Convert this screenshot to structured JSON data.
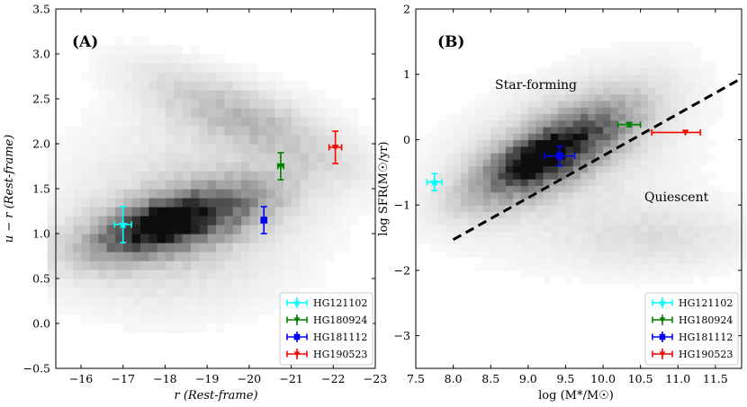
{
  "chart_data": [
    {
      "type": "scatter",
      "panel_label": "(A)",
      "xlabel": "r (Rest-frame)",
      "ylabel": "u − r (Rest-frame)",
      "xlim": [
        -15.4,
        -23.0
      ],
      "ylim": [
        -0.5,
        3.5
      ],
      "x_ticks": [
        -16,
        -17,
        -18,
        -19,
        -20,
        -21,
        -22,
        -23
      ],
      "x_tick_labels": [
        "−16",
        "−17",
        "−18",
        "−19",
        "−20",
        "−21",
        "−22",
        "−23"
      ],
      "y_ticks": [
        -0.5,
        0.0,
        0.5,
        1.0,
        1.5,
        2.0,
        2.5,
        3.0,
        3.5
      ],
      "y_tick_labels": [
        "−0.5",
        "0.0",
        "0.5",
        "1.0",
        "1.5",
        "2.0",
        "2.5",
        "3.0",
        "3.5"
      ],
      "background": "2D density histogram of comparison galaxies (grey)",
      "points": [
        {
          "name": "HG121102",
          "x": -17.0,
          "y": 1.1,
          "xerr": 0.2,
          "yerr": 0.2,
          "color": "#00ffff",
          "marker": "star"
        },
        {
          "name": "HG180924",
          "x": -20.75,
          "y": 1.75,
          "xerr": 0.07,
          "yerr": 0.15,
          "color": "#008000",
          "marker": "tri-down"
        },
        {
          "name": "HG181112",
          "x": -20.35,
          "y": 1.15,
          "xerr": 0.03,
          "yerr": 0.15,
          "color": "#0000ff",
          "marker": "square"
        },
        {
          "name": "HG190523",
          "x": -22.05,
          "y": 1.96,
          "xerr": 0.15,
          "yerr": 0.18,
          "color": "#ff0000",
          "marker": "tri-down"
        }
      ],
      "legend": [
        "HG121102",
        "HG180924",
        "HG181112",
        "HG190523"
      ],
      "legend_position": "bottom-right"
    },
    {
      "type": "scatter",
      "panel_label": "(B)",
      "xlabel": "log (M*/M☉)",
      "ylabel": "log SFR(M☉/yr)",
      "xlim": [
        7.5,
        11.85
      ],
      "ylim": [
        -3.5,
        2.0
      ],
      "x_ticks": [
        7.5,
        8.0,
        8.5,
        9.0,
        9.5,
        10.0,
        10.5,
        11.0,
        11.5
      ],
      "x_tick_labels": [
        "7.5",
        "8.0",
        "8.5",
        "9.0",
        "9.5",
        "10.0",
        "10.5",
        "11.0",
        "11.5"
      ],
      "y_ticks": [
        -3,
        -2,
        -1,
        0,
        1,
        2
      ],
      "y_tick_labels": [
        "−3",
        "−2",
        "−1",
        "0",
        "1",
        "2"
      ],
      "background": "2D density histogram of comparison galaxies (grey)",
      "annotations": [
        "Star-forming",
        "Quiescent"
      ],
      "divider_line": {
        "style": "dashed",
        "color": "#000000",
        "x": [
          8.0,
          11.85
        ],
        "y": [
          -1.53,
          0.94
        ]
      },
      "points": [
        {
          "name": "HG121102",
          "x": 7.75,
          "y": -0.65,
          "xerr": 0.1,
          "yerr": 0.13,
          "color": "#00ffff",
          "marker": "star"
        },
        {
          "name": "HG180924",
          "x": 10.35,
          "y": 0.23,
          "xerr": 0.15,
          "yerr": 0.03,
          "color": "#008000",
          "marker": "tri-down"
        },
        {
          "name": "HG181112",
          "x": 9.42,
          "y": -0.25,
          "xerr": 0.2,
          "yerr": 0.15,
          "color": "#0000ff",
          "marker": "square"
        },
        {
          "name": "HG190523",
          "x": 11.1,
          "y": 0.11,
          "xerr": [
            0.45,
            0.2
          ],
          "yerr": 0.0,
          "color": "#ff0000",
          "marker": "tri-down"
        }
      ],
      "legend": [
        "HG121102",
        "HG180924",
        "HG181112",
        "HG190523"
      ],
      "legend_position": "bottom-right"
    }
  ]
}
